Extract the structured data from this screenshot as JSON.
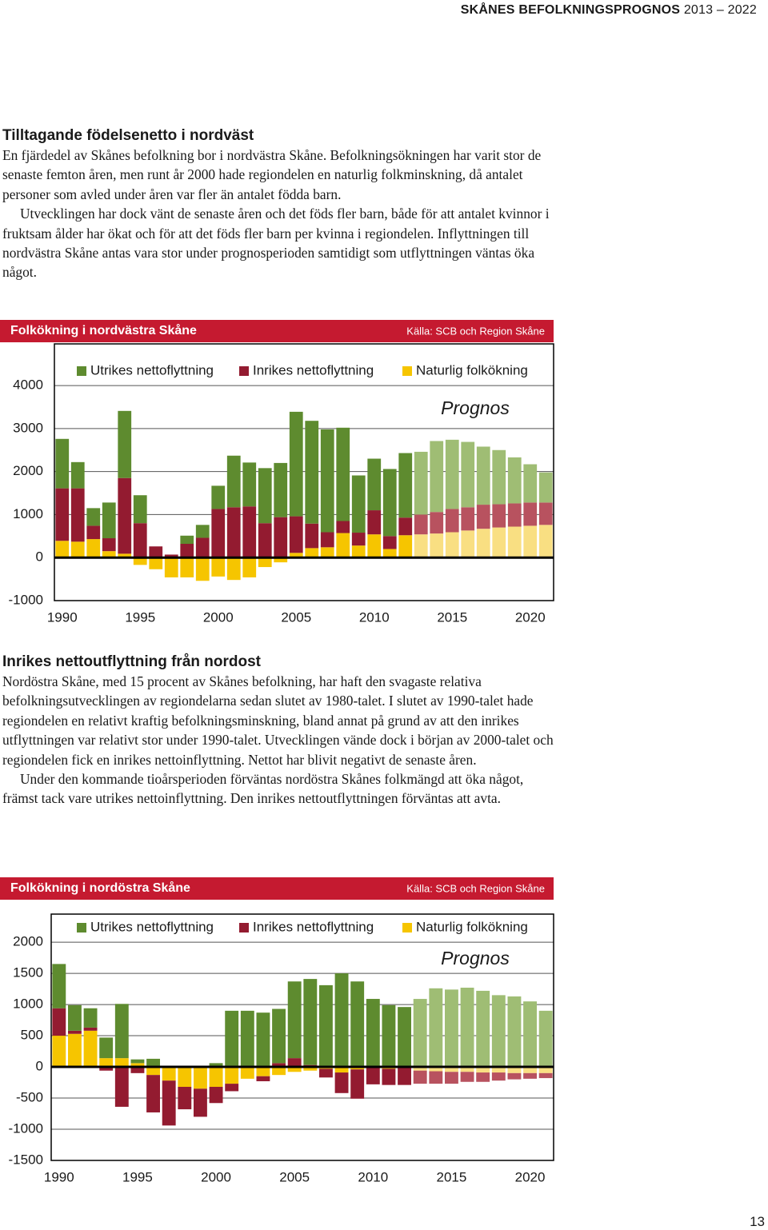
{
  "header": {
    "title": "SKÅNES BEFOLKNINGSPROGNOS",
    "years": "2013 – 2022"
  },
  "sections": [
    {
      "heading": "Tilltagande födelsenetto i nordväst",
      "paragraphs": [
        "En fjärdedel av Skånes befolkning bor i nordvästra Skåne. Befolkningsökningen har varit stor de senaste femton åren, men runt år 2000 hade regiondelen en naturlig folkminskning, då antalet personer som avled under åren var fler än antalet födda barn.",
        "Utvecklingen har dock vänt de senaste åren och det föds fler barn, både för att antalet kvinnor i fruktsam ålder har ökat och för att det föds fler barn per kvinna i regiondelen. Inflyttningen till nordvästra Skåne antas vara stor under prognosperioden samtidigt som utflyttningen väntas öka något."
      ]
    },
    {
      "heading": "Inrikes nettoutflyttning från nordost",
      "paragraphs": [
        "Nordöstra Skåne, med 15 procent av Skånes befolkning, har haft den svagaste relativa befolkningsutvecklingen av regiondelarna sedan slutet av 1980-talet. I slutet av 1990-talet hade regiondelen en relativt kraftig befolkningsminskning, bland annat på grund av att den inrikes utflyttningen var relativt stor under 1990-talet. Utvecklingen vände dock i början av 2000-talet och regiondelen fick en inrikes nettoinflyttning. Nettot har blivit negativt de senaste åren.",
        "Under den kommande tioårsperioden förväntas nordöstra Skånes folkmängd att öka något, främst tack vare utrikes nettoinflyttning. Den inrikes nettoutflyttningen förväntas att avta."
      ]
    }
  ],
  "chart_data": [
    {
      "type": "bar",
      "stacked": true,
      "title": "Folkökning i nordvästra Skåne",
      "source": "Källa: SCB och Region Skåne",
      "annotation": "Prognos",
      "x": [
        1990,
        1991,
        1992,
        1993,
        1994,
        1995,
        1996,
        1997,
        1998,
        1999,
        2000,
        2001,
        2002,
        2003,
        2004,
        2005,
        2006,
        2007,
        2008,
        2009,
        2010,
        2011,
        2012,
        2013,
        2014,
        2015,
        2016,
        2017,
        2018,
        2019,
        2020,
        2021
      ],
      "xlim": [
        1989.5,
        2021.5
      ],
      "xticks": [
        1990,
        1995,
        2000,
        2005,
        2010,
        2015,
        2020
      ],
      "ylim": [
        -1000,
        4950
      ],
      "yticks": [
        -1000,
        0,
        1000,
        2000,
        3000,
        4000
      ],
      "grid": true,
      "forecast_start": 2013,
      "series": [
        {
          "name": "Utrikes nettoflyttning",
          "color": "#5e8b2f",
          "forecast_color": "#9fbd74",
          "values": [
            1150,
            610,
            410,
            830,
            1560,
            650,
            0,
            0,
            190,
            300,
            540,
            1200,
            1020,
            1280,
            1260,
            2430,
            2390,
            2390,
            2170,
            1330,
            1200,
            1560,
            1500,
            1460,
            1650,
            1610,
            1520,
            1350,
            1260,
            1070,
            890,
            700
          ]
        },
        {
          "name": "Inrikes nettoflyttning",
          "color": "#931b30",
          "forecast_color": "#b8525f",
          "values": [
            1220,
            1240,
            310,
            300,
            1760,
            800,
            260,
            70,
            320,
            460,
            1130,
            1170,
            1190,
            800,
            940,
            850,
            570,
            350,
            280,
            300,
            560,
            300,
            410,
            460,
            500,
            540,
            540,
            560,
            540,
            540,
            540,
            520
          ]
        },
        {
          "name": "Naturlig folkökning",
          "color": "#f6c500",
          "forecast_color": "#f9df82",
          "values": [
            390,
            370,
            430,
            150,
            90,
            -170,
            -270,
            -460,
            -460,
            -540,
            -440,
            -520,
            -460,
            -220,
            -110,
            110,
            220,
            240,
            570,
            280,
            540,
            200,
            520,
            540,
            560,
            590,
            630,
            670,
            700,
            720,
            740,
            760
          ]
        }
      ]
    },
    {
      "type": "bar",
      "stacked": true,
      "title": "Folkökning i nordöstra Skåne",
      "source": "Källa: SCB och Region Skåne",
      "annotation": "Prognos",
      "x": [
        1990,
        1991,
        1992,
        1993,
        1994,
        1995,
        1996,
        1997,
        1998,
        1999,
        2000,
        2001,
        2002,
        2003,
        2004,
        2005,
        2006,
        2007,
        2008,
        2009,
        2010,
        2011,
        2012,
        2013,
        2014,
        2015,
        2016,
        2017,
        2018,
        2019,
        2020,
        2021
      ],
      "xlim": [
        1989.5,
        2021.5
      ],
      "xticks": [
        1990,
        1995,
        2000,
        2005,
        2010,
        2015,
        2020
      ],
      "ylim": [
        -1500,
        2450
      ],
      "yticks": [
        -1500,
        -1000,
        -500,
        0,
        500,
        1000,
        1500,
        2000
      ],
      "grid": true,
      "forecast_start": 2013,
      "series": [
        {
          "name": "Utrikes nettoflyttning",
          "color": "#5e8b2f",
          "forecast_color": "#9fbd74",
          "values": [
            710,
            410,
            310,
            330,
            870,
            60,
            130,
            0,
            0,
            0,
            60,
            900,
            900,
            870,
            870,
            1230,
            1380,
            1310,
            1500,
            1370,
            1080,
            990,
            960,
            1090,
            1260,
            1240,
            1270,
            1220,
            1150,
            1130,
            1050,
            900
          ]
        },
        {
          "name": "Inrikes nettoflyttning",
          "color": "#931b30",
          "forecast_color": "#b8525f",
          "values": [
            440,
            50,
            50,
            -60,
            -640,
            -100,
            -600,
            -720,
            -360,
            -450,
            -260,
            -120,
            0,
            -80,
            60,
            140,
            30,
            -140,
            -330,
            -470,
            -280,
            -260,
            -280,
            -210,
            -200,
            -190,
            -160,
            -150,
            -130,
            -100,
            -90,
            -80
          ]
        },
        {
          "name": "Naturlig folkökning",
          "color": "#f6c500",
          "forecast_color": "#f9df82",
          "values": [
            500,
            530,
            580,
            140,
            140,
            60,
            -130,
            -220,
            -320,
            -350,
            -320,
            -270,
            -190,
            -150,
            -130,
            -80,
            -60,
            -30,
            -90,
            -40,
            10,
            -30,
            -10,
            -60,
            -70,
            -80,
            -80,
            -90,
            -90,
            -100,
            -100,
            -100
          ]
        }
      ]
    }
  ],
  "page_number": "13"
}
